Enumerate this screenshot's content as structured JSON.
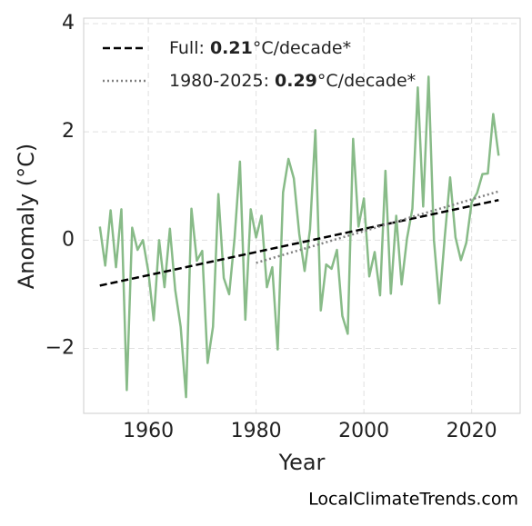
{
  "chart_data": {
    "type": "line",
    "xlabel": "Year",
    "ylabel": "Anomaly (°C)",
    "watermark": "LocalClimateTrends.com",
    "x": [
      1951,
      1952,
      1953,
      1954,
      1955,
      1956,
      1957,
      1958,
      1959,
      1960,
      1961,
      1962,
      1963,
      1964,
      1965,
      1966,
      1967,
      1968,
      1969,
      1970,
      1971,
      1972,
      1973,
      1974,
      1975,
      1976,
      1977,
      1978,
      1979,
      1980,
      1981,
      1982,
      1983,
      1984,
      1985,
      1986,
      1987,
      1988,
      1989,
      1990,
      1991,
      1992,
      1993,
      1994,
      1995,
      1996,
      1997,
      1998,
      1999,
      2000,
      2001,
      2002,
      2003,
      2004,
      2005,
      2006,
      2007,
      2008,
      2009,
      2010,
      2011,
      2012,
      2013,
      2014,
      2015,
      2016,
      2017,
      2018,
      2019,
      2020,
      2021,
      2022,
      2023,
      2024,
      2025
    ],
    "values": [
      0.25,
      -0.47,
      0.55,
      -0.5,
      0.57,
      -2.77,
      0.23,
      -0.18,
      0.0,
      -0.58,
      -1.48,
      0.0,
      -0.87,
      0.21,
      -0.93,
      -1.6,
      -2.9,
      0.58,
      -0.38,
      -0.2,
      -2.27,
      -1.6,
      0.85,
      -0.7,
      -1.0,
      0.03,
      1.45,
      -1.47,
      0.57,
      0.05,
      0.45,
      -0.87,
      -0.5,
      -2.02,
      0.88,
      1.5,
      1.14,
      0.12,
      -0.57,
      0.2,
      2.03,
      -1.3,
      -0.45,
      -0.53,
      -0.18,
      -1.4,
      -1.73,
      1.87,
      0.25,
      0.77,
      -0.67,
      -0.22,
      -1.02,
      1.28,
      -0.99,
      0.45,
      -0.82,
      0.03,
      0.58,
      2.82,
      0.62,
      3.02,
      0.0,
      -1.17,
      0.05,
      1.16,
      0.05,
      -0.37,
      -0.05,
      0.7,
      0.87,
      1.22,
      1.23,
      2.33,
      1.56
    ],
    "color": "#88bb88",
    "trends": [
      {
        "label": "Full:",
        "slope": 0.21,
        "unit": "°C/decade*",
        "color": "#000000",
        "dash": "dashed",
        "x": [
          1951,
          2025
        ],
        "values": [
          -0.84,
          0.74
        ]
      },
      {
        "label": "1980-2025:",
        "slope": 0.29,
        "unit": "°C/decade*",
        "color": "#808080",
        "dash": "dotted",
        "x": [
          1980,
          2025
        ],
        "values": [
          -0.42,
          0.9
        ]
      }
    ],
    "xlim": [
      1948,
      2029
    ],
    "ylim": [
      -3.2,
      4.1
    ],
    "xticks": [
      1960,
      1980,
      2000,
      2020
    ],
    "yticks": [
      {
        "value": -2,
        "label": "−2"
      },
      0,
      2,
      4
    ],
    "grid": true
  }
}
